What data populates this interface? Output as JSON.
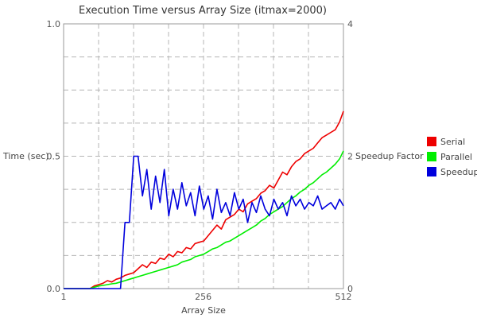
{
  "chart_data": {
    "type": "line",
    "title": "Execution Time versus Array Size (itmax=2000)",
    "xlabel": "Array Size",
    "ylabel": "Time (sec)",
    "y2label": "Speedup Factor",
    "xlim": [
      1,
      512
    ],
    "ylim": [
      0,
      1.0
    ],
    "y2lim": [
      0,
      4
    ],
    "xticks": [
      1,
      256,
      512
    ],
    "xtick_labels": [
      "1",
      "256",
      "512"
    ],
    "yticks": [
      0,
      0.5,
      1.0
    ],
    "ytick_labels": [
      "0.0",
      "0.5",
      "1.0"
    ],
    "y2ticks": [
      0,
      2,
      4
    ],
    "y2tick_labels": [
      "0",
      "2",
      "4"
    ],
    "grid": true,
    "legend_position": "right",
    "x": [
      1,
      17,
      33,
      49,
      57,
      65,
      73,
      81,
      89,
      97,
      105,
      113,
      121,
      129,
      137,
      145,
      153,
      161,
      169,
      177,
      185,
      193,
      201,
      209,
      217,
      225,
      233,
      241,
      249,
      257,
      265,
      273,
      281,
      289,
      297,
      305,
      313,
      321,
      329,
      337,
      345,
      353,
      361,
      369,
      377,
      385,
      393,
      401,
      409,
      417,
      425,
      433,
      441,
      449,
      457,
      465,
      473,
      481,
      489,
      497,
      505,
      512
    ],
    "series": [
      {
        "name": "Serial",
        "color": "#ee0000",
        "axis": "left",
        "values": [
          0.0,
          0.0,
          0.0,
          0.0,
          0.01,
          0.015,
          0.02,
          0.03,
          0.025,
          0.035,
          0.04,
          0.05,
          0.055,
          0.06,
          0.075,
          0.09,
          0.08,
          0.1,
          0.095,
          0.115,
          0.11,
          0.13,
          0.12,
          0.14,
          0.135,
          0.155,
          0.15,
          0.17,
          0.175,
          0.18,
          0.2,
          0.22,
          0.24,
          0.225,
          0.26,
          0.27,
          0.28,
          0.3,
          0.29,
          0.32,
          0.33,
          0.34,
          0.36,
          0.37,
          0.39,
          0.38,
          0.41,
          0.44,
          0.43,
          0.46,
          0.48,
          0.49,
          0.51,
          0.52,
          0.53,
          0.55,
          0.57,
          0.58,
          0.59,
          0.6,
          0.63,
          0.67
        ]
      },
      {
        "name": "Parallel",
        "color": "#00ee00",
        "axis": "left",
        "values": [
          0.0,
          0.0,
          0.0,
          0.0,
          0.005,
          0.01,
          0.012,
          0.015,
          0.018,
          0.02,
          0.025,
          0.03,
          0.035,
          0.04,
          0.045,
          0.05,
          0.055,
          0.06,
          0.065,
          0.07,
          0.075,
          0.08,
          0.085,
          0.09,
          0.1,
          0.105,
          0.11,
          0.12,
          0.125,
          0.13,
          0.14,
          0.15,
          0.155,
          0.165,
          0.175,
          0.18,
          0.19,
          0.2,
          0.21,
          0.22,
          0.23,
          0.24,
          0.255,
          0.265,
          0.28,
          0.29,
          0.3,
          0.31,
          0.325,
          0.34,
          0.35,
          0.365,
          0.375,
          0.39,
          0.4,
          0.415,
          0.43,
          0.44,
          0.455,
          0.47,
          0.49,
          0.52
        ]
      },
      {
        "name": "Speedup",
        "color": "#0000dd",
        "axis": "right",
        "values": [
          0.0,
          0.0,
          0.0,
          0.0,
          0.0,
          0.0,
          0.0,
          0.0,
          0.0,
          0.0,
          0.0,
          1.0,
          1.0,
          2.0,
          2.0,
          1.4,
          1.8,
          1.2,
          1.7,
          1.3,
          1.8,
          1.1,
          1.5,
          1.2,
          1.6,
          1.25,
          1.45,
          1.1,
          1.55,
          1.2,
          1.4,
          1.05,
          1.5,
          1.15,
          1.3,
          1.1,
          1.45,
          1.2,
          1.35,
          1.0,
          1.3,
          1.15,
          1.4,
          1.2,
          1.1,
          1.35,
          1.2,
          1.3,
          1.1,
          1.4,
          1.25,
          1.35,
          1.2,
          1.3,
          1.25,
          1.4,
          1.2,
          1.25,
          1.3,
          1.2,
          1.35,
          1.25
        ]
      }
    ]
  }
}
